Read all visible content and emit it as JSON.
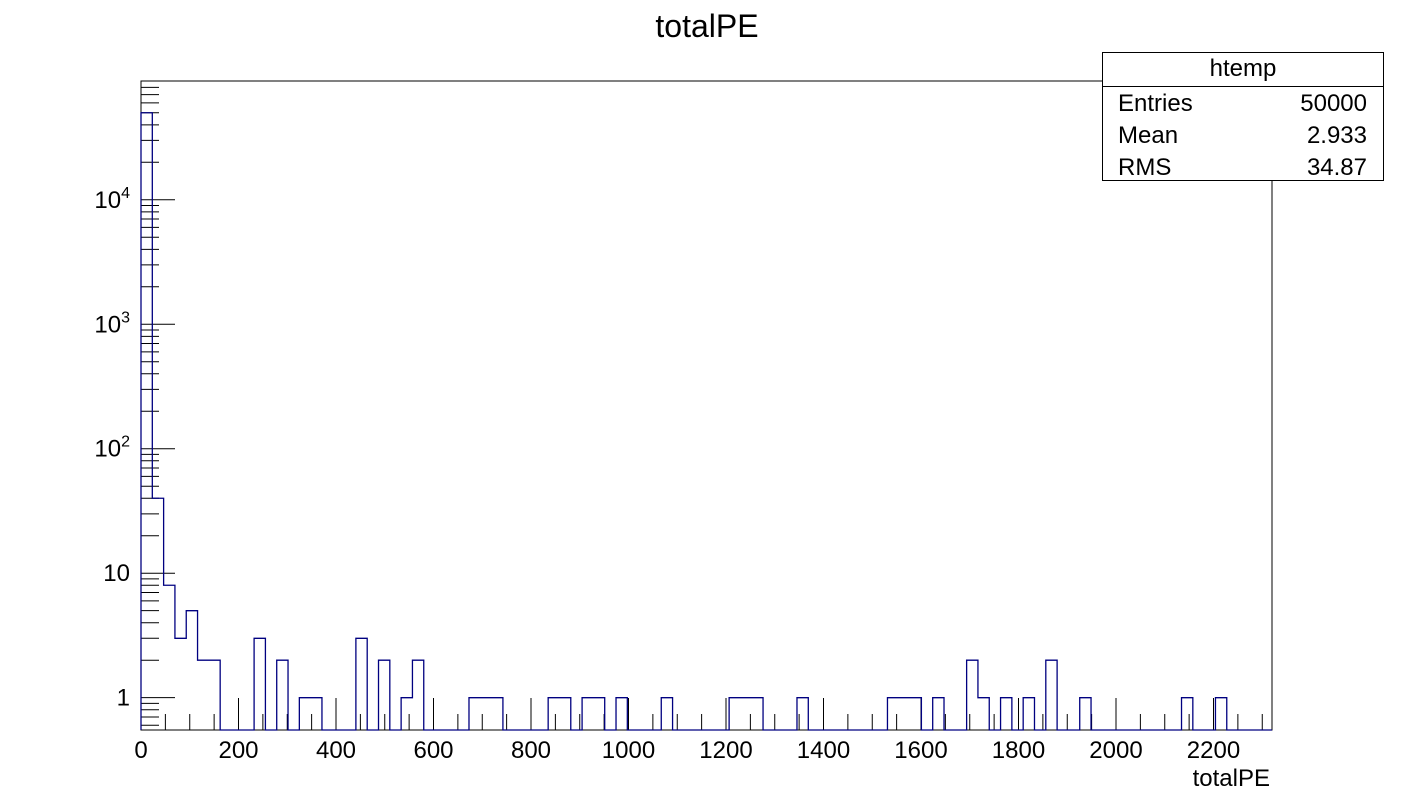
{
  "chart_data": {
    "type": "bar",
    "title": "totalPE",
    "xlabel": "totalPE",
    "ylabel": "",
    "x_range": [
      0,
      2320
    ],
    "y_range": [
      0.55,
      90000
    ],
    "y_scale": "log",
    "x_ticks": [
      "0",
      "200",
      "400",
      "600",
      "800",
      "1000",
      "1200",
      "1400",
      "1600",
      "1800",
      "2000",
      "2200"
    ],
    "y_ticks": [
      {
        "base": "1",
        "exp": ""
      },
      {
        "base": "10",
        "exp": ""
      },
      {
        "base": "10",
        "exp": "2"
      },
      {
        "base": "10",
        "exp": "3"
      },
      {
        "base": "10",
        "exp": "4"
      }
    ],
    "bin_width": 23.2,
    "bins": [
      {
        "x": 0,
        "v": 50000
      },
      {
        "x": 23.2,
        "v": 40
      },
      {
        "x": 46.4,
        "v": 8
      },
      {
        "x": 69.6,
        "v": 3
      },
      {
        "x": 92.8,
        "v": 5
      },
      {
        "x": 116,
        "v": 2
      },
      {
        "x": 139.2,
        "v": 2
      },
      {
        "x": 232,
        "v": 3
      },
      {
        "x": 278.4,
        "v": 2
      },
      {
        "x": 324.8,
        "v": 1
      },
      {
        "x": 348,
        "v": 1
      },
      {
        "x": 440.8,
        "v": 3
      },
      {
        "x": 487.2,
        "v": 2
      },
      {
        "x": 533.6,
        "v": 1
      },
      {
        "x": 556.8,
        "v": 2
      },
      {
        "x": 672.8,
        "v": 1
      },
      {
        "x": 696,
        "v": 1
      },
      {
        "x": 719.2,
        "v": 1
      },
      {
        "x": 835.2,
        "v": 1
      },
      {
        "x": 858.4,
        "v": 1
      },
      {
        "x": 904.8,
        "v": 1
      },
      {
        "x": 928,
        "v": 1
      },
      {
        "x": 974.4,
        "v": 1
      },
      {
        "x": 1067.2,
        "v": 1
      },
      {
        "x": 1206.4,
        "v": 1
      },
      {
        "x": 1229.6,
        "v": 1
      },
      {
        "x": 1252.8,
        "v": 1
      },
      {
        "x": 1345.6,
        "v": 1
      },
      {
        "x": 1531.2,
        "v": 1
      },
      {
        "x": 1554.4,
        "v": 1
      },
      {
        "x": 1577.6,
        "v": 1
      },
      {
        "x": 1624,
        "v": 1
      },
      {
        "x": 1693.6,
        "v": 2
      },
      {
        "x": 1716.8,
        "v": 1
      },
      {
        "x": 1763.2,
        "v": 1
      },
      {
        "x": 1809.6,
        "v": 1
      },
      {
        "x": 1856,
        "v": 2
      },
      {
        "x": 1925.6,
        "v": 1
      },
      {
        "x": 2134.4,
        "v": 1
      },
      {
        "x": 2204,
        "v": 1
      }
    ],
    "line_color": "#000080"
  },
  "stats": {
    "name": "htemp",
    "rows": [
      {
        "label": "Entries",
        "value": "50000"
      },
      {
        "label": "Mean",
        "value": "2.933"
      },
      {
        "label": "RMS",
        "value": "34.87"
      }
    ]
  }
}
